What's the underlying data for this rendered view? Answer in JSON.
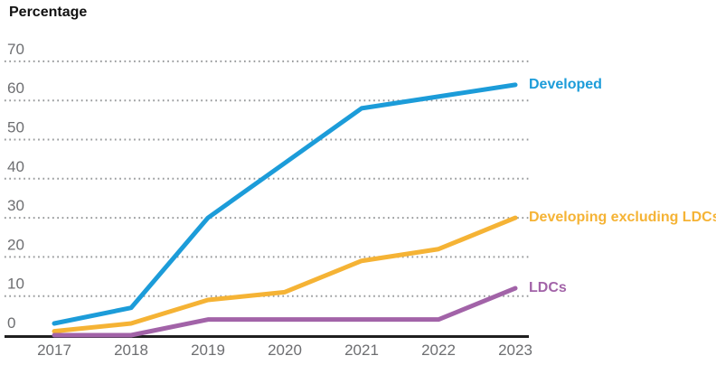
{
  "chart_data": {
    "type": "line",
    "title": "Percentage",
    "x_labels": [
      "2017",
      "2018",
      "2019",
      "2020",
      "2021",
      "2022",
      "2023"
    ],
    "y_ticks": [
      0,
      10,
      20,
      30,
      40,
      50,
      60,
      70
    ],
    "ylim": [
      0,
      70
    ],
    "grid": "horizontal dotted lines at each 10-unit tick, solid black baseline at 0",
    "legend_position": "colored labels at right end of each line",
    "series": [
      {
        "name": "Developed",
        "color": "#1c9cd9",
        "values": [
          3,
          7,
          30,
          44,
          58,
          61,
          64
        ]
      },
      {
        "name": "Developing excluding LDCs",
        "color": "#f5b335",
        "values": [
          1,
          3,
          9,
          11,
          19,
          22,
          30
        ]
      },
      {
        "name": "LDCs",
        "color": "#a263a8",
        "values": [
          0,
          0,
          4,
          4,
          4,
          4,
          12
        ]
      }
    ],
    "colors": {
      "axis": "#1f1f1f",
      "tick_labels": "#6d6e71",
      "gridlines": "#97999b",
      "background": "#ffffff"
    }
  }
}
